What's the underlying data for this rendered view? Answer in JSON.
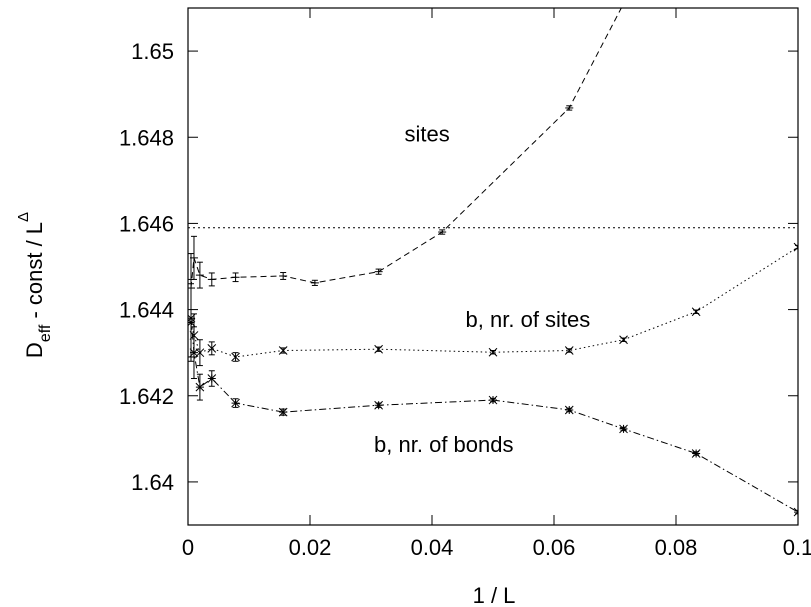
{
  "chart_data": {
    "type": "line",
    "title": "",
    "xlabel": "1 / L",
    "ylabel": {
      "main": "D",
      "sub": "eff",
      "mid": "  -  const / L",
      "sup": "Δ"
    },
    "xlim": [
      0,
      0.1
    ],
    "ylim": [
      1.639,
      1.651
    ],
    "xticks": [
      0,
      0.02,
      0.04,
      0.06,
      0.08,
      0.1
    ],
    "xtick_labels": [
      "0",
      "0.02",
      "0.04",
      "0.06",
      "0.08",
      "0.1"
    ],
    "yticks": [
      1.64,
      1.642,
      1.644,
      1.646,
      1.648,
      1.65
    ],
    "ytick_labels": [
      "1.64",
      "1.642",
      "1.644",
      "1.646",
      "1.648",
      "1.65"
    ],
    "grid": false,
    "reference_line": {
      "y": 1.6459,
      "style": "dotted"
    },
    "series": [
      {
        "name": "sites",
        "marker": "tick",
        "line_style": "dashed",
        "x": [
          0.00049,
          0.00098,
          0.00195,
          0.0039,
          0.0078,
          0.0156,
          0.0208,
          0.03125,
          0.04167,
          0.0625,
          0.0714
        ],
        "y": [
          1.6445,
          1.6452,
          1.6448,
          1.6447,
          1.64475,
          1.64478,
          1.64462,
          1.64488,
          1.6458,
          1.64868,
          1.6511
        ],
        "err": [
          0.0008,
          0.0005,
          0.0003,
          0.00015,
          0.0001,
          8e-05,
          6e-05,
          6e-05,
          5e-05,
          5e-05,
          5e-05
        ]
      },
      {
        "name": "b,  nr. of sites",
        "marker": "x",
        "line_style": "dotted",
        "x": [
          0.00049,
          0.00098,
          0.00195,
          0.0039,
          0.0078,
          0.0156,
          0.03125,
          0.05,
          0.0625,
          0.0714,
          0.0833,
          0.1
        ],
        "y": [
          1.6437,
          1.6434,
          1.643,
          1.6431,
          1.6429,
          1.64305,
          1.64308,
          1.64301,
          1.64305,
          1.6433,
          1.64395,
          1.64545
        ],
        "err": [
          0.0009,
          0.0005,
          0.0003,
          0.00015,
          0.0001,
          6e-05,
          5e-05,
          4e-05,
          4e-05,
          4e-05,
          4e-05,
          4e-05
        ]
      },
      {
        "name": "b,  nr. of bonds",
        "marker": "star",
        "line_style": "dashdot",
        "x": [
          0.00049,
          0.00098,
          0.00195,
          0.0039,
          0.0078,
          0.0156,
          0.03125,
          0.05,
          0.0625,
          0.0714,
          0.0833,
          0.1
        ],
        "y": [
          1.6438,
          1.643,
          1.6422,
          1.6424,
          1.64183,
          1.64162,
          1.64178,
          1.6419,
          1.64167,
          1.64123,
          1.64066,
          1.6393
        ],
        "err": [
          0.0009,
          0.0006,
          0.0003,
          0.00018,
          0.0001,
          7e-05,
          5e-05,
          4e-05,
          4e-05,
          4e-05,
          4e-05,
          4e-05
        ]
      }
    ],
    "annotations": [
      {
        "text": "sites",
        "x": 0.0355,
        "y": 1.6479
      },
      {
        "text": "b,  nr. of sites",
        "x": 0.0455,
        "y": 1.6436
      },
      {
        "text": "b,  nr. of bonds",
        "x": 0.0305,
        "y": 1.6407
      }
    ]
  }
}
